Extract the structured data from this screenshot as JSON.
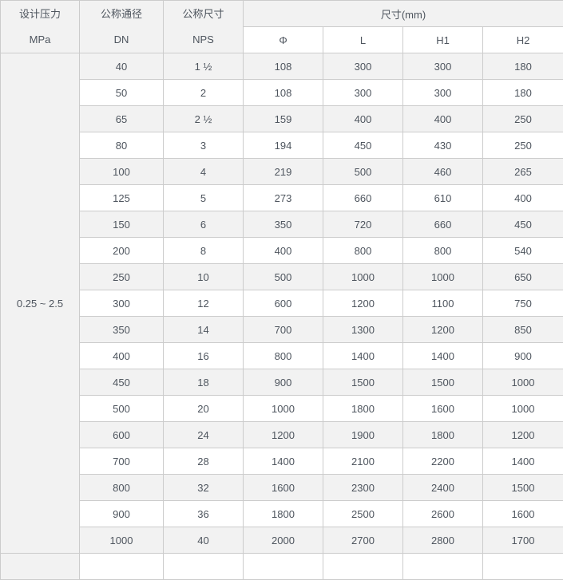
{
  "table": {
    "col_headers": [
      {
        "line1": "设计压力",
        "line2": "MPa"
      },
      {
        "line1": "公称通径",
        "line2": "DN"
      },
      {
        "line1": "公称尺寸",
        "line2": "NPS"
      }
    ],
    "size_group_label": "尺寸(mm)",
    "sub_headers": [
      "Φ",
      "L",
      "H1",
      "H2"
    ],
    "pressure_value": "0.25 ~ 2.5",
    "rows": [
      [
        "40",
        "1 ½",
        "108",
        "300",
        "300",
        "180"
      ],
      [
        "50",
        "2",
        "108",
        "300",
        "300",
        "180"
      ],
      [
        "65",
        "2 ½",
        "159",
        "400",
        "400",
        "250"
      ],
      [
        "80",
        "3",
        "194",
        "450",
        "430",
        "250"
      ],
      [
        "100",
        "4",
        "219",
        "500",
        "460",
        "265"
      ],
      [
        "125",
        "5",
        "273",
        "660",
        "610",
        "400"
      ],
      [
        "150",
        "6",
        "350",
        "720",
        "660",
        "450"
      ],
      [
        "200",
        "8",
        "400",
        "800",
        "800",
        "540"
      ],
      [
        "250",
        "10",
        "500",
        "1000",
        "1000",
        "650"
      ],
      [
        "300",
        "12",
        "600",
        "1200",
        "1100",
        "750"
      ],
      [
        "350",
        "14",
        "700",
        "1300",
        "1200",
        "850"
      ],
      [
        "400",
        "16",
        "800",
        "1400",
        "1400",
        "900"
      ],
      [
        "450",
        "18",
        "900",
        "1500",
        "1500",
        "1000"
      ],
      [
        "500",
        "20",
        "1000",
        "1800",
        "1600",
        "1000"
      ],
      [
        "600",
        "24",
        "1200",
        "1900",
        "1800",
        "1200"
      ],
      [
        "700",
        "28",
        "1400",
        "2100",
        "2200",
        "1400"
      ],
      [
        "800",
        "32",
        "1600",
        "2300",
        "2400",
        "1500"
      ],
      [
        "900",
        "36",
        "1800",
        "2500",
        "2600",
        "1600"
      ],
      [
        "1000",
        "40",
        "2000",
        "2700",
        "2800",
        "1700"
      ]
    ]
  },
  "colors": {
    "border": "#cccccc",
    "header_bg": "#f2f2f2",
    "stripe_bg": "#f2f2f2",
    "text": "#4e555e"
  }
}
